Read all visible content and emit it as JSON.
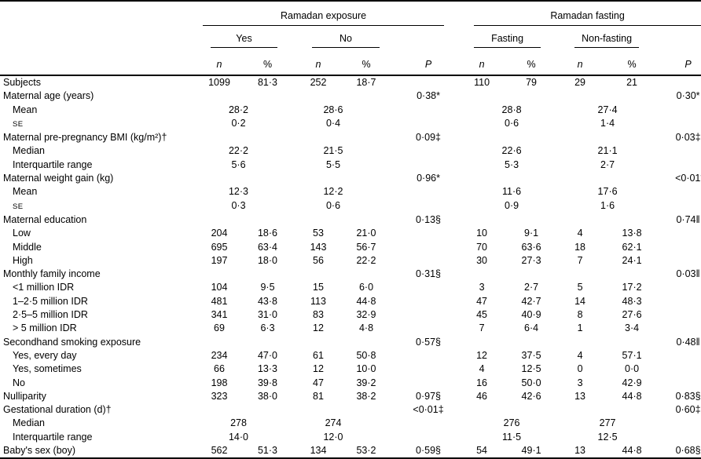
{
  "table": {
    "col_headers": {
      "n": "n",
      "pct": "%",
      "p": "P"
    },
    "groups": [
      {
        "label": "Ramadan exposure",
        "subgroups": [
          {
            "label": "Yes"
          },
          {
            "label": "No"
          }
        ]
      },
      {
        "label": "Ramadan fasting",
        "subgroups": [
          {
            "label": "Fasting"
          },
          {
            "label": "Non-fasting"
          }
        ]
      }
    ],
    "rows": [
      {
        "label": "Subjects",
        "cells": [
          "1099",
          "81·3",
          "252",
          "18·7",
          "",
          "110",
          "79",
          "29",
          "21",
          ""
        ]
      },
      {
        "label": "Maternal age (years)",
        "cells": [
          "",
          "",
          "",
          "",
          "0·38*",
          "",
          "",
          "",
          "",
          "0·30*"
        ]
      },
      {
        "label": "Mean",
        "indent": 1,
        "spans": [
          "28·2",
          "28·6",
          "28·8",
          "27·4"
        ]
      },
      {
        "label": "SE",
        "indent": 1,
        "sc": true,
        "spans": [
          "0·2",
          "0·4",
          "0·6",
          "1·4"
        ]
      },
      {
        "label": "Maternal pre-pregnancy BMI (kg/m²)†",
        "cells": [
          "",
          "",
          "",
          "",
          "0·09‡",
          "",
          "",
          "",
          "",
          "0·03‡"
        ]
      },
      {
        "label": "Median",
        "indent": 1,
        "spans": [
          "22·2",
          "21·5",
          "22·6",
          "21·1"
        ]
      },
      {
        "label": "Interquartile range",
        "indent": 1,
        "spans": [
          "5·6",
          "5·5",
          "5·3",
          "2·7"
        ]
      },
      {
        "label": "Maternal weight gain (kg)",
        "cells": [
          "",
          "",
          "",
          "",
          "0·96*",
          "",
          "",
          "",
          "",
          "<0·01*"
        ]
      },
      {
        "label": "Mean",
        "indent": 1,
        "spans": [
          "12·3",
          "12·2",
          "11·6",
          "17·6"
        ]
      },
      {
        "label": "SE",
        "indent": 1,
        "sc": true,
        "spans": [
          "0·3",
          "0·6",
          "0·9",
          "1·6"
        ]
      },
      {
        "label": "Maternal education",
        "cells": [
          "",
          "",
          "",
          "",
          "0·13§",
          "",
          "",
          "",
          "",
          "0·74‖"
        ]
      },
      {
        "label": "Low",
        "indent": 1,
        "cells": [
          "204",
          "18·6",
          "53",
          "21·0",
          "",
          "10",
          "9·1",
          "4",
          "13·8",
          ""
        ]
      },
      {
        "label": "Middle",
        "indent": 1,
        "cells": [
          "695",
          "63·4",
          "143",
          "56·7",
          "",
          "70",
          "63·6",
          "18",
          "62·1",
          ""
        ]
      },
      {
        "label": "High",
        "indent": 1,
        "cells": [
          "197",
          "18·0",
          "56",
          "22·2",
          "",
          "30",
          "27·3",
          "7",
          "24·1",
          ""
        ]
      },
      {
        "label": "Monthly family income",
        "cells": [
          "",
          "",
          "",
          "",
          "0·31§",
          "",
          "",
          "",
          "",
          "0·03‖"
        ]
      },
      {
        "label": "<1 million IDR",
        "indent": 1,
        "cells": [
          "104",
          "9·5",
          "15",
          "6·0",
          "",
          "3",
          "2·7",
          "5",
          "17·2",
          ""
        ]
      },
      {
        "label": "1–2·5 million IDR",
        "indent": 1,
        "cells": [
          "481",
          "43·8",
          "113",
          "44·8",
          "",
          "47",
          "42·7",
          "14",
          "48·3",
          ""
        ]
      },
      {
        "label": "2·5–5 million IDR",
        "indent": 1,
        "cells": [
          "341",
          "31·0",
          "83",
          "32·9",
          "",
          "45",
          "40·9",
          "8",
          "27·6",
          ""
        ]
      },
      {
        "label": "> 5 million IDR",
        "indent": 1,
        "cells": [
          "69",
          "6·3",
          "12",
          "4·8",
          "",
          "7",
          "6·4",
          "1",
          "3·4",
          ""
        ]
      },
      {
        "label": "Secondhand smoking exposure",
        "cells": [
          "",
          "",
          "",
          "",
          "0·57§",
          "",
          "",
          "",
          "",
          "0·48‖"
        ]
      },
      {
        "label": "Yes, every day",
        "indent": 1,
        "cells": [
          "234",
          "47·0",
          "61",
          "50·8",
          "",
          "12",
          "37·5",
          "4",
          "57·1",
          ""
        ]
      },
      {
        "label": "Yes, sometimes",
        "indent": 1,
        "cells": [
          "66",
          "13·3",
          "12",
          "10·0",
          "",
          "4",
          "12·5",
          "0",
          "0·0",
          ""
        ]
      },
      {
        "label": "No",
        "indent": 1,
        "cells": [
          "198",
          "39·8",
          "47",
          "39·2",
          "",
          "16",
          "50·0",
          "3",
          "42·9",
          ""
        ]
      },
      {
        "label": "Nulliparity",
        "cells": [
          "323",
          "38·0",
          "81",
          "38·2",
          "0·97§",
          "46",
          "42·6",
          "13",
          "44·8",
          "0·83§"
        ]
      },
      {
        "label": "Gestational duration (d)†",
        "cells": [
          "",
          "",
          "",
          "",
          "<0·01‡",
          "",
          "",
          "",
          "",
          "0·60‡"
        ]
      },
      {
        "label": "Median",
        "indent": 1,
        "spans": [
          "278",
          "274",
          "276",
          "277"
        ]
      },
      {
        "label": "Interquartile range",
        "indent": 1,
        "spans": [
          "14·0",
          "12·0",
          "11·5",
          "12·5"
        ]
      },
      {
        "label": "Baby's sex (boy)",
        "cells": [
          "562",
          "51·3",
          "134",
          "53·2",
          "0·59§",
          "54",
          "49·1",
          "13",
          "44·8",
          "0·68§"
        ]
      }
    ]
  }
}
